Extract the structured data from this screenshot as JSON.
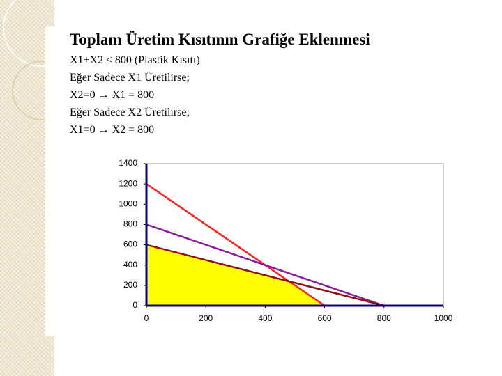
{
  "slide": {
    "title": "Toplam Üretim Kısıtının Grafiğe Eklenmesi",
    "lines": [
      "X1+X2 ≤ 800 (Plastik Kısıtı)",
      "Eğer Sadece X1 Üretilirse;",
      "X2=0 → X1 = 800",
      "Eğer Sadece X2 Üretilirse;",
      "X1=0 → X2 = 800"
    ]
  },
  "chart_data": {
    "type": "line",
    "xlim": [
      0,
      1000
    ],
    "xticks": [
      0,
      200,
      400,
      600,
      800,
      1000
    ],
    "ylim": [
      0,
      1400
    ],
    "yticks": [
      0,
      200,
      400,
      600,
      800,
      1000,
      1200,
      1400
    ],
    "region": {
      "x": [
        0,
        0,
        480,
        600
      ],
      "values": [
        0,
        600,
        240,
        0
      ],
      "color": "#ffff00"
    },
    "series": [
      {
        "color": "#ff2020",
        "x": [
          0,
          600
        ],
        "values": [
          1200,
          0
        ]
      },
      {
        "color": "#8b1a9a",
        "x": [
          0,
          800
        ],
        "values": [
          800,
          0
        ]
      },
      {
        "color": "#8b1010",
        "x": [
          0,
          800
        ],
        "values": [
          600,
          0
        ]
      }
    ]
  }
}
